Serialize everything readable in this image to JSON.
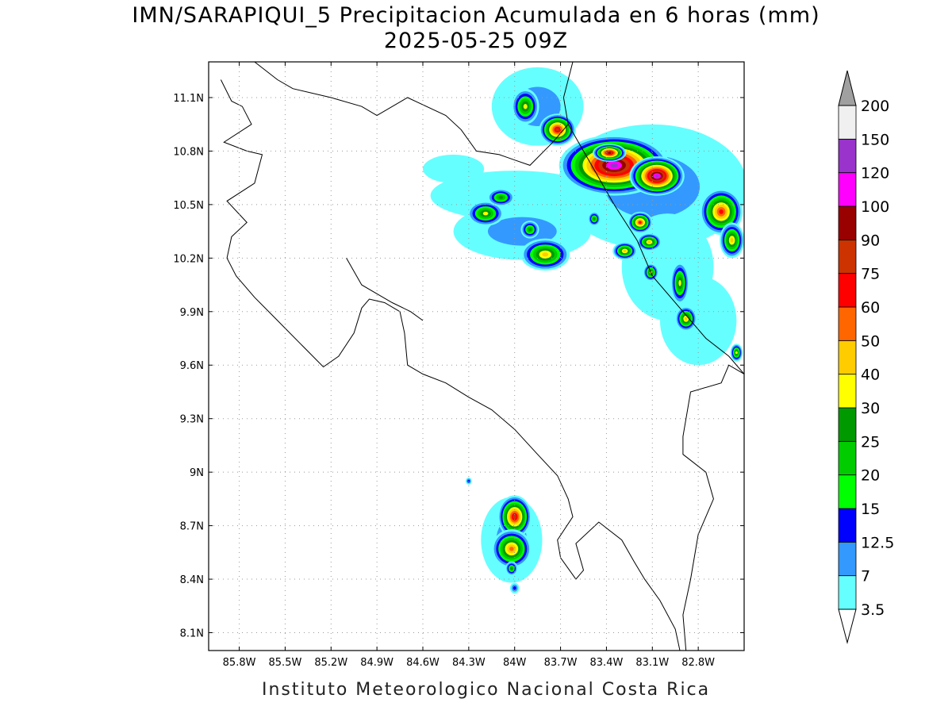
{
  "header": {
    "title": "IMN/SARAPIQUI_5 Precipitacion Acumulada en 6 horas (mm)",
    "date": "2025-05-25 09Z"
  },
  "footer": {
    "institution": "Instituto Meteorologico Nacional Costa Rica"
  },
  "map": {
    "lon_range": [
      -86.0,
      -82.5
    ],
    "lat_range": [
      8.0,
      11.3
    ],
    "lon_ticks": [
      {
        "value": -85.8,
        "label": "85.8W"
      },
      {
        "value": -85.5,
        "label": "85.5W"
      },
      {
        "value": -85.2,
        "label": "85.2W"
      },
      {
        "value": -84.9,
        "label": "84.9W"
      },
      {
        "value": -84.6,
        "label": "84.6W"
      },
      {
        "value": -84.3,
        "label": "84.3W"
      },
      {
        "value": -84.0,
        "label": "84W"
      },
      {
        "value": -83.7,
        "label": "83.7W"
      },
      {
        "value": -83.4,
        "label": "83.4W"
      },
      {
        "value": -83.1,
        "label": "83.1W"
      },
      {
        "value": -82.8,
        "label": "82.8W"
      }
    ],
    "lat_ticks": [
      {
        "value": 11.1,
        "label": "11.1N"
      },
      {
        "value": 10.8,
        "label": "10.8N"
      },
      {
        "value": 10.5,
        "label": "10.5N"
      },
      {
        "value": 10.2,
        "label": "10.2N"
      },
      {
        "value": 9.9,
        "label": "9.9N"
      },
      {
        "value": 9.6,
        "label": "9.6N"
      },
      {
        "value": 9.3,
        "label": "9.3N"
      },
      {
        "value": 9.0,
        "label": "9N"
      },
      {
        "value": 8.7,
        "label": "8.7N"
      },
      {
        "value": 8.4,
        "label": "8.4N"
      },
      {
        "value": 8.1,
        "label": "8.1N"
      }
    ],
    "grid": true
  },
  "colorbar": {
    "levels": [
      {
        "label": "3.5",
        "color": "#66ffff"
      },
      {
        "label": "7",
        "color": "#3399ff"
      },
      {
        "label": "12.5",
        "color": "#0000ff"
      },
      {
        "label": "15",
        "color": "#00ff00"
      },
      {
        "label": "20",
        "color": "#00cc00"
      },
      {
        "label": "25",
        "color": "#009900"
      },
      {
        "label": "30",
        "color": "#ffff00"
      },
      {
        "label": "40",
        "color": "#ffcc00"
      },
      {
        "label": "50",
        "color": "#ff6600"
      },
      {
        "label": "60",
        "color": "#ff0000"
      },
      {
        "label": "75",
        "color": "#cc3300"
      },
      {
        "label": "90",
        "color": "#990000"
      },
      {
        "label": "100",
        "color": "#ff00ff"
      },
      {
        "label": "120",
        "color": "#9933cc"
      },
      {
        "label": "150",
        "color": "#f0f0f0"
      },
      {
        "label": "200",
        "color": "#a0a0a0"
      }
    ]
  },
  "precip_cells": [
    {
      "lon": -83.93,
      "lat": 11.05,
      "rx": 0.09,
      "ry": 0.1,
      "max": 30
    },
    {
      "lon": -83.72,
      "lat": 10.92,
      "rx": 0.12,
      "ry": 0.09,
      "max": 75
    },
    {
      "lon": -83.35,
      "lat": 10.72,
      "rx": 0.36,
      "ry": 0.17,
      "max": 120
    },
    {
      "lon": -83.07,
      "lat": 10.66,
      "rx": 0.18,
      "ry": 0.11,
      "max": 120
    },
    {
      "lon": -83.38,
      "lat": 10.79,
      "rx": 0.11,
      "ry": 0.05,
      "max": 90
    },
    {
      "lon": -83.18,
      "lat": 10.4,
      "rx": 0.08,
      "ry": 0.06,
      "max": 60
    },
    {
      "lon": -82.65,
      "lat": 10.46,
      "rx": 0.14,
      "ry": 0.13,
      "max": 60
    },
    {
      "lon": -82.58,
      "lat": 10.3,
      "rx": 0.08,
      "ry": 0.1,
      "max": 40
    },
    {
      "lon": -84.19,
      "lat": 10.45,
      "rx": 0.12,
      "ry": 0.07,
      "max": 30
    },
    {
      "lon": -84.09,
      "lat": 10.54,
      "rx": 0.09,
      "ry": 0.05,
      "max": 25
    },
    {
      "lon": -83.9,
      "lat": 10.36,
      "rx": 0.06,
      "ry": 0.05,
      "max": 25
    },
    {
      "lon": -83.8,
      "lat": 10.22,
      "rx": 0.16,
      "ry": 0.09,
      "max": 40
    },
    {
      "lon": -83.28,
      "lat": 10.24,
      "rx": 0.08,
      "ry": 0.05,
      "max": 40
    },
    {
      "lon": -83.12,
      "lat": 10.29,
      "rx": 0.08,
      "ry": 0.05,
      "max": 40
    },
    {
      "lon": -83.11,
      "lat": 10.12,
      "rx": 0.05,
      "ry": 0.05,
      "max": 30
    },
    {
      "lon": -82.92,
      "lat": 10.06,
      "rx": 0.06,
      "ry": 0.12,
      "max": 30
    },
    {
      "lon": -82.88,
      "lat": 9.86,
      "rx": 0.07,
      "ry": 0.07,
      "max": 40
    },
    {
      "lon": -82.55,
      "lat": 9.67,
      "rx": 0.04,
      "ry": 0.05,
      "max": 30
    },
    {
      "lon": -83.48,
      "lat": 10.42,
      "rx": 0.04,
      "ry": 0.04,
      "max": 25
    },
    {
      "lon": -84.0,
      "lat": 8.75,
      "rx": 0.11,
      "ry": 0.12,
      "max": 75
    },
    {
      "lon": -84.02,
      "lat": 8.57,
      "rx": 0.13,
      "ry": 0.11,
      "max": 50
    },
    {
      "lon": -84.02,
      "lat": 8.46,
      "rx": 0.04,
      "ry": 0.04,
      "max": 25
    },
    {
      "lon": -84.0,
      "lat": 8.35,
      "rx": 0.03,
      "ry": 0.03,
      "max": 12.5
    },
    {
      "lon": -84.3,
      "lat": 8.95,
      "rx": 0.02,
      "ry": 0.02,
      "max": 12.5
    }
  ],
  "precip_bands": [
    {
      "lon": -84.0,
      "lat": 10.55,
      "rx": 0.55,
      "ry": 0.14,
      "max": 3.5
    },
    {
      "lon": -83.95,
      "lat": 10.35,
      "rx": 0.45,
      "ry": 0.16,
      "max": 7
    },
    {
      "lon": -83.1,
      "lat": 10.6,
      "rx": 0.62,
      "ry": 0.35,
      "max": 7
    },
    {
      "lon": -83.0,
      "lat": 10.15,
      "rx": 0.3,
      "ry": 0.3,
      "max": 3.5
    },
    {
      "lon": -82.8,
      "lat": 9.85,
      "rx": 0.25,
      "ry": 0.25,
      "max": 3.5
    },
    {
      "lon": -83.85,
      "lat": 11.05,
      "rx": 0.3,
      "ry": 0.22,
      "max": 7
    },
    {
      "lon": -84.4,
      "lat": 10.7,
      "rx": 0.2,
      "ry": 0.08,
      "max": 3.5
    },
    {
      "lon": -84.02,
      "lat": 8.62,
      "rx": 0.2,
      "ry": 0.24,
      "max": 7
    }
  ],
  "coastlines": {
    "pacific": [
      [
        -85.92,
        11.2
      ],
      [
        -85.85,
        11.08
      ],
      [
        -85.78,
        11.05
      ],
      [
        -85.72,
        10.95
      ],
      [
        -85.9,
        10.85
      ],
      [
        -85.75,
        10.8
      ],
      [
        -85.65,
        10.78
      ],
      [
        -85.7,
        10.62
      ],
      [
        -85.88,
        10.52
      ],
      [
        -85.75,
        10.4
      ],
      [
        -85.85,
        10.32
      ],
      [
        -85.88,
        10.2
      ],
      [
        -85.82,
        10.1
      ],
      [
        -85.7,
        9.98
      ],
      [
        -85.55,
        9.85
      ],
      [
        -85.4,
        9.72
      ],
      [
        -85.25,
        9.59
      ],
      [
        -85.15,
        9.65
      ],
      [
        -85.05,
        9.78
      ],
      [
        -85.0,
        9.92
      ],
      [
        -84.95,
        9.97
      ],
      [
        -84.85,
        9.95
      ],
      [
        -84.75,
        9.9
      ],
      [
        -84.72,
        9.78
      ],
      [
        -84.7,
        9.6
      ],
      [
        -84.6,
        9.55
      ],
      [
        -84.45,
        9.5
      ],
      [
        -84.3,
        9.42
      ],
      [
        -84.15,
        9.35
      ],
      [
        -84.0,
        9.24
      ],
      [
        -83.85,
        9.1
      ],
      [
        -83.72,
        8.98
      ],
      [
        -83.65,
        8.85
      ],
      [
        -83.62,
        8.75
      ],
      [
        -83.72,
        8.62
      ],
      [
        -83.7,
        8.52
      ],
      [
        -83.6,
        8.4
      ],
      [
        -83.55,
        8.45
      ],
      [
        -83.6,
        8.6
      ],
      [
        -83.45,
        8.72
      ],
      [
        -83.3,
        8.62
      ],
      [
        -83.22,
        8.5
      ],
      [
        -83.15,
        8.4
      ],
      [
        -83.05,
        8.28
      ],
      [
        -82.95,
        8.12
      ],
      [
        -82.92,
        8.0
      ]
    ],
    "caribbean": [
      [
        -83.62,
        11.3
      ],
      [
        -83.68,
        11.1
      ],
      [
        -83.65,
        10.95
      ],
      [
        -83.55,
        10.8
      ],
      [
        -83.35,
        10.5
      ],
      [
        -83.2,
        10.3
      ],
      [
        -83.1,
        10.1
      ],
      [
        -82.9,
        9.9
      ],
      [
        -82.75,
        9.75
      ],
      [
        -82.6,
        9.65
      ],
      [
        -82.5,
        9.55
      ]
    ],
    "nicaragua": [
      [
        -85.7,
        11.3
      ],
      [
        -85.55,
        11.2
      ],
      [
        -85.45,
        11.15
      ],
      [
        -85.2,
        11.1
      ],
      [
        -85.0,
        11.05
      ],
      [
        -84.9,
        11.0
      ],
      [
        -84.7,
        11.1
      ],
      [
        -84.45,
        11.0
      ],
      [
        -84.35,
        10.92
      ],
      [
        -84.25,
        10.8
      ],
      [
        -84.1,
        10.78
      ],
      [
        -84.0,
        10.75
      ],
      [
        -83.9,
        10.72
      ],
      [
        -83.75,
        10.85
      ],
      [
        -83.65,
        10.95
      ]
    ],
    "panama": [
      [
        -82.5,
        9.55
      ],
      [
        -82.6,
        9.6
      ],
      [
        -82.65,
        9.5
      ],
      [
        -82.85,
        9.45
      ],
      [
        -82.9,
        9.2
      ],
      [
        -82.9,
        9.1
      ],
      [
        -82.75,
        9.0
      ],
      [
        -82.7,
        8.85
      ],
      [
        -82.8,
        8.65
      ],
      [
        -82.85,
        8.4
      ],
      [
        -82.9,
        8.2
      ],
      [
        -82.88,
        8.0
      ]
    ],
    "nicoya_gulf": [
      [
        -85.1,
        10.2
      ],
      [
        -85.0,
        10.05
      ],
      [
        -84.9,
        10.0
      ],
      [
        -84.8,
        9.95
      ],
      [
        -84.68,
        9.9
      ],
      [
        -84.6,
        9.85
      ]
    ]
  }
}
